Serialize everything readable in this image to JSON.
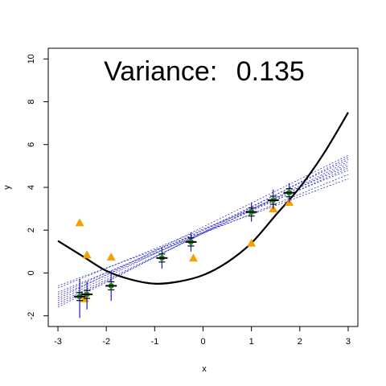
{
  "chart_data": {
    "type": "scatter",
    "title_prefix": "Variance:",
    "title_value": "0.135",
    "xlabel": "x",
    "ylabel": "y",
    "xlim": [
      -3.2,
      3.2
    ],
    "ylim": [
      -2.5,
      10.5
    ],
    "x_ticks": [
      -3,
      -2,
      -1,
      0,
      1,
      2,
      3
    ],
    "y_ticks": [
      -2,
      0,
      2,
      4,
      6,
      8,
      10
    ],
    "grid": false,
    "colors": {
      "true_curve": "#000000",
      "fit_lines": "#3333cc",
      "observed": "#f5a000",
      "fitted_points": "#1a8a1a",
      "error_bars": "#1a1acc",
      "mean_markers": "#000000"
    },
    "true_curve": {
      "description_points_x": [
        -3,
        -2.5,
        -2,
        -1.5,
        -1,
        -0.5,
        0,
        0.5,
        1,
        1.5,
        2,
        2.5,
        3
      ],
      "y": [
        1.5,
        0.8,
        0.1,
        -0.3,
        -0.5,
        -0.4,
        -0.1,
        0.5,
        1.4,
        2.7,
        4.0,
        5.6,
        7.5
      ]
    },
    "fit_lines": [
      {
        "y_at_-3": -1.2,
        "y_at_3": 5.5
      },
      {
        "y_at_-3": -1.3,
        "y_at_3": 5.3
      },
      {
        "y_at_-3": -1.0,
        "y_at_3": 5.0
      },
      {
        "y_at_-3": -1.5,
        "y_at_3": 5.2
      },
      {
        "y_at_-3": -0.7,
        "y_at_3": 4.8
      },
      {
        "y_at_-3": -0.9,
        "y_at_3": 4.6
      },
      {
        "y_at_-3": -1.6,
        "y_at_3": 5.4
      },
      {
        "y_at_-3": -0.6,
        "y_at_3": 4.4
      },
      {
        "y_at_-3": -1.1,
        "y_at_3": 4.9
      },
      {
        "y_at_-3": -1.4,
        "y_at_3": 5.1
      }
    ],
    "observed_points": [
      {
        "x": -2.55,
        "y": 2.35
      },
      {
        "x": -2.4,
        "y": 0.85
      },
      {
        "x": -1.9,
        "y": 0.75
      },
      {
        "x": -0.2,
        "y": 0.7
      },
      {
        "x": 1.0,
        "y": 1.4
      },
      {
        "x": 1.45,
        "y": 3.0
      },
      {
        "x": 1.78,
        "y": 3.3
      },
      {
        "x": -2.45,
        "y": -1.2
      }
    ],
    "fitted_points": [
      {
        "x": -2.55,
        "y": -1.1,
        "lo": -2.1,
        "hi": -0.3
      },
      {
        "x": -2.4,
        "y": -1.0,
        "lo": -1.7,
        "hi": -0.4
      },
      {
        "x": -1.9,
        "y": -0.6,
        "lo": -1.3,
        "hi": 0.1
      },
      {
        "x": -0.85,
        "y": 0.7,
        "lo": 0.2,
        "hi": 1.2
      },
      {
        "x": -0.25,
        "y": 1.45,
        "lo": 1.0,
        "hi": 1.9
      },
      {
        "x": 1.0,
        "y": 2.85,
        "lo": 2.4,
        "hi": 3.3
      },
      {
        "x": 1.45,
        "y": 3.4,
        "lo": 3.0,
        "hi": 3.9
      },
      {
        "x": 1.78,
        "y": 3.75,
        "lo": 3.3,
        "hi": 4.2
      }
    ]
  }
}
